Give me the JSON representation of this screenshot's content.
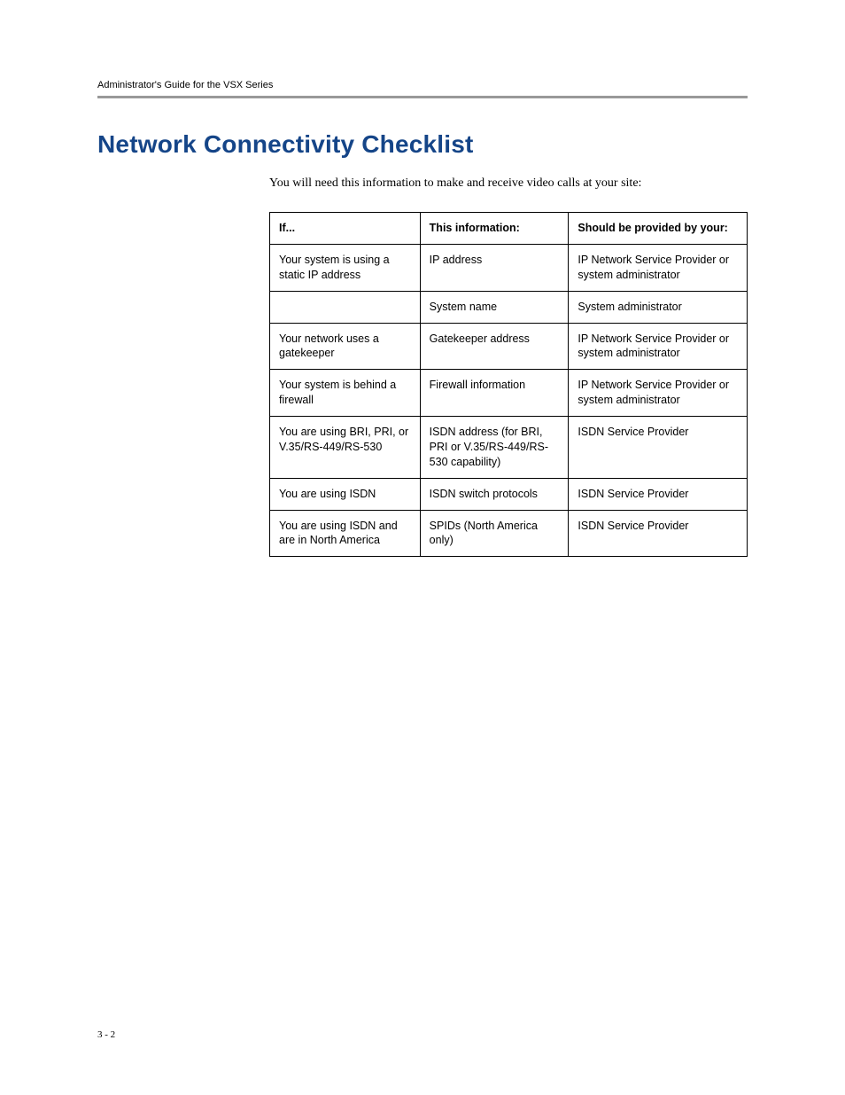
{
  "header": {
    "running_title": "Administrator's Guide for the VSX Series"
  },
  "section": {
    "title": "Network Connectivity Checklist",
    "intro": "You will need this information to make and receive video calls at your site:"
  },
  "table": {
    "columns": {
      "col1": "If...",
      "col2": "This information:",
      "col3": "Should be provided by your:"
    },
    "rows": [
      {
        "if": "Your system is using a static IP address",
        "info": "IP address",
        "provider": "IP Network Service Provider or system administrator"
      },
      {
        "if": "",
        "info": "System name",
        "provider": "System administrator"
      },
      {
        "if": "Your network uses a gatekeeper",
        "info": "Gatekeeper address",
        "provider": "IP Network Service Provider or system administrator"
      },
      {
        "if": "Your system is behind a firewall",
        "info": "Firewall information",
        "provider": "IP Network Service Provider or system administrator"
      },
      {
        "if": "You are using BRI, PRI, or V.35/RS-449/RS-530",
        "info": "ISDN address (for BRI, PRI or V.35/RS-449/RS-530 capability)",
        "provider": "ISDN Service Provider"
      },
      {
        "if": "You are using ISDN",
        "info": "ISDN switch protocols",
        "provider": "ISDN Service Provider"
      },
      {
        "if": "You are using ISDN and are in North America",
        "info": "SPIDs (North America only)",
        "provider": "ISDN Service Provider"
      }
    ]
  },
  "footer": {
    "page_number": "3 - 2"
  },
  "colors": {
    "title_color": "#154588",
    "rule_color": "#999999",
    "text_color": "#000000",
    "background": "#ffffff",
    "border_color": "#000000"
  },
  "typography": {
    "title_fontsize": 28,
    "body_fontsize": 14,
    "table_fontsize": 12.5,
    "header_fontsize": 11,
    "footer_fontsize": 11
  }
}
